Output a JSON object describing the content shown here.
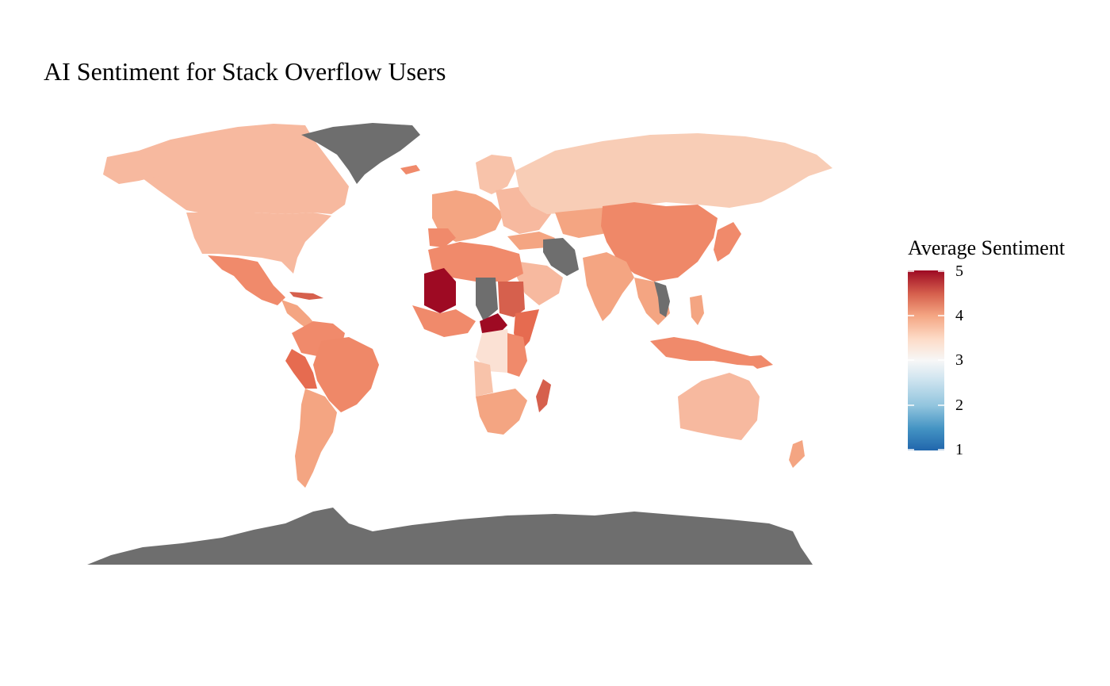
{
  "title": "AI Sentiment for Stack Overflow Users",
  "legend": {
    "title": "Average Sentiment",
    "ticks": [
      "5",
      "4",
      "3",
      "2",
      "1"
    ],
    "min": 1,
    "max": 5,
    "colors": [
      "#2166ac",
      "#4393c3",
      "#92c5de",
      "#d1e5f0",
      "#f7f7f7",
      "#fddbc7",
      "#f4a582",
      "#d6604d",
      "#b2182b",
      "#9e0a23"
    ],
    "missing_color": "#6e6e6e"
  },
  "map_data": {
    "type": "choropleth",
    "variable": "average_sentiment",
    "regions": [
      {
        "name": "Canada",
        "value": 3.9
      },
      {
        "name": "United States",
        "value": 3.9
      },
      {
        "name": "Mexico",
        "value": 4.1
      },
      {
        "name": "Greenland",
        "value": null
      },
      {
        "name": "Brazil",
        "value": 4.2
      },
      {
        "name": "Peru",
        "value": 4.4
      },
      {
        "name": "Argentina",
        "value": 4.0
      },
      {
        "name": "Russia",
        "value": 3.7
      },
      {
        "name": "China",
        "value": 4.3
      },
      {
        "name": "India",
        "value": 4.1
      },
      {
        "name": "Iran",
        "value": null
      },
      {
        "name": "Australia",
        "value": 3.9
      },
      {
        "name": "Mali",
        "value": 5.0
      },
      {
        "name": "Sudan",
        "value": 4.5
      },
      {
        "name": "Madagascar",
        "value": 4.6
      },
      {
        "name": "Central African Republic",
        "value": 5.0
      },
      {
        "name": "DR Congo",
        "value": 3.4
      },
      {
        "name": "Antarctica",
        "value": null
      }
    ]
  }
}
